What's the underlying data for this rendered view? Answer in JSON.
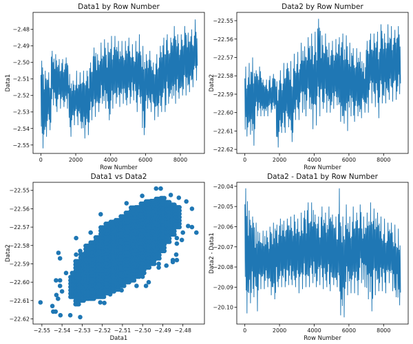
{
  "colors": {
    "series": "#1f77b4",
    "frame": "#000000",
    "background": "#ffffff"
  },
  "chart_data": [
    {
      "type": "line",
      "title": "Data1 by Row Number",
      "xlabel": "Row Number",
      "ylabel": "Data1",
      "xlim": [
        -448,
        9380
      ],
      "ylim": [
        -2.5551,
        -2.4697
      ],
      "xticks": [
        {
          "v": 0,
          "label": "0"
        },
        {
          "v": 2000,
          "label": "2000"
        },
        {
          "v": 4000,
          "label": "4000"
        },
        {
          "v": 6000,
          "label": "6000"
        },
        {
          "v": 8000,
          "label": "8000"
        }
      ],
      "yticks": [
        {
          "v": -2.48,
          "label": "−2.48"
        },
        {
          "v": -2.49,
          "label": "−2.49"
        },
        {
          "v": -2.5,
          "label": "−2.50"
        },
        {
          "v": -2.51,
          "label": "−2.51"
        },
        {
          "v": -2.52,
          "label": "−2.52"
        },
        {
          "v": -2.53,
          "label": "−2.53"
        },
        {
          "v": -2.54,
          "label": "−2.54"
        },
        {
          "v": -2.55,
          "label": "−2.55"
        }
      ],
      "bin_rows": 200,
      "bins_min_max": [
        [
          -2.552,
          -2.499
        ],
        [
          -2.545,
          -2.505
        ],
        [
          -2.541,
          -2.506
        ],
        [
          -2.526,
          -2.493
        ],
        [
          -2.53,
          -2.495
        ],
        [
          -2.528,
          -2.498
        ],
        [
          -2.527,
          -2.498
        ],
        [
          -2.528,
          -2.497
        ],
        [
          -2.545,
          -2.507
        ],
        [
          -2.538,
          -2.511
        ],
        [
          -2.538,
          -2.505
        ],
        [
          -2.54,
          -2.506
        ],
        [
          -2.546,
          -2.505
        ],
        [
          -2.544,
          -2.505
        ],
        [
          -2.535,
          -2.5
        ],
        [
          -2.533,
          -2.491
        ],
        [
          -2.53,
          -2.495
        ],
        [
          -2.525,
          -2.488
        ],
        [
          -2.528,
          -2.486
        ],
        [
          -2.535,
          -2.488
        ],
        [
          -2.528,
          -2.484
        ],
        [
          -2.525,
          -2.484
        ],
        [
          -2.527,
          -2.487
        ],
        [
          -2.525,
          -2.487
        ],
        [
          -2.526,
          -2.487
        ],
        [
          -2.525,
          -2.485
        ],
        [
          -2.523,
          -2.489
        ],
        [
          -2.53,
          -2.487
        ],
        [
          -2.525,
          -2.483
        ],
        [
          -2.544,
          -2.49
        ],
        [
          -2.528,
          -2.495
        ],
        [
          -2.53,
          -2.493
        ],
        [
          -2.535,
          -2.5
        ],
        [
          -2.533,
          -2.495
        ],
        [
          -2.53,
          -2.49
        ],
        [
          -2.53,
          -2.485
        ],
        [
          -2.525,
          -2.483
        ],
        [
          -2.522,
          -2.485
        ],
        [
          -2.525,
          -2.478
        ],
        [
          -2.522,
          -2.483
        ],
        [
          -2.52,
          -2.483
        ],
        [
          -2.52,
          -2.478
        ],
        [
          -2.518,
          -2.482
        ],
        [
          -2.515,
          -2.48
        ],
        [
          -2.511,
          -2.474
        ]
      ]
    },
    {
      "type": "line",
      "title": "Data2 by Row Number",
      "xlabel": "Row Number",
      "ylabel": "Data2",
      "xlim": [
        -464,
        9417
      ],
      "ylim": [
        -22.6222,
        -22.5455
      ],
      "xticks": [
        {
          "v": 0,
          "label": "0"
        },
        {
          "v": 2000,
          "label": "2000"
        },
        {
          "v": 4000,
          "label": "4000"
        },
        {
          "v": 6000,
          "label": "6000"
        },
        {
          "v": 8000,
          "label": "8000"
        }
      ],
      "yticks": [
        {
          "v": -22.55,
          "label": "−22.55"
        },
        {
          "v": -22.56,
          "label": "−22.56"
        },
        {
          "v": -22.57,
          "label": "−22.57"
        },
        {
          "v": -22.58,
          "label": "−22.58"
        },
        {
          "v": -22.59,
          "label": "−22.59"
        },
        {
          "v": -22.6,
          "label": "−22.60"
        },
        {
          "v": -22.61,
          "label": "−22.61"
        },
        {
          "v": -22.62,
          "label": "−22.62"
        }
      ],
      "bin_rows": 200,
      "bins_min_max": [
        [
          -22.613,
          -22.575
        ],
        [
          -22.612,
          -22.573
        ],
        [
          -22.618,
          -22.57
        ],
        [
          -22.602,
          -22.577
        ],
        [
          -22.602,
          -22.575
        ],
        [
          -22.602,
          -22.582
        ],
        [
          -22.602,
          -22.582
        ],
        [
          -22.6,
          -22.58
        ],
        [
          -22.598,
          -22.579
        ],
        [
          -22.619,
          -22.583
        ],
        [
          -22.611,
          -22.577
        ],
        [
          -22.611,
          -22.573
        ],
        [
          -22.608,
          -22.573
        ],
        [
          -22.616,
          -22.572
        ],
        [
          -22.604,
          -22.568
        ],
        [
          -22.604,
          -22.567
        ],
        [
          -22.6,
          -22.562
        ],
        [
          -22.602,
          -22.564
        ],
        [
          -22.598,
          -22.559
        ],
        [
          -22.609,
          -22.557
        ],
        [
          -22.607,
          -22.556
        ],
        [
          -22.602,
          -22.549
        ],
        [
          -22.598,
          -22.558
        ],
        [
          -22.6,
          -22.557
        ],
        [
          -22.6,
          -22.562
        ],
        [
          -22.598,
          -22.561
        ],
        [
          -22.596,
          -22.56
        ],
        [
          -22.605,
          -22.559
        ],
        [
          -22.606,
          -22.557
        ],
        [
          -22.61,
          -22.558
        ],
        [
          -22.602,
          -22.562
        ],
        [
          -22.605,
          -22.565
        ],
        [
          -22.602,
          -22.565
        ],
        [
          -22.603,
          -22.567
        ],
        [
          -22.6,
          -22.573
        ],
        [
          -22.6,
          -22.561
        ],
        [
          -22.595,
          -22.557
        ],
        [
          -22.597,
          -22.557
        ],
        [
          -22.603,
          -22.556
        ],
        [
          -22.595,
          -22.552
        ],
        [
          -22.595,
          -22.557
        ],
        [
          -22.593,
          -22.552
        ],
        [
          -22.594,
          -22.553
        ],
        [
          -22.593,
          -22.555
        ],
        [
          -22.59,
          -22.553
        ]
      ]
    },
    {
      "type": "scatter",
      "title": "Data1 vs Data2",
      "xlabel": "Data1",
      "ylabel": "Data2",
      "xlim": [
        -2.5544,
        -2.4693
      ],
      "ylim": [
        -22.6228,
        -22.5456
      ],
      "xticks": [
        {
          "v": -2.55,
          "label": "−2.55"
        },
        {
          "v": -2.54,
          "label": "−2.54"
        },
        {
          "v": -2.53,
          "label": "−2.53"
        },
        {
          "v": -2.52,
          "label": "−2.52"
        },
        {
          "v": -2.51,
          "label": "−2.51"
        },
        {
          "v": -2.5,
          "label": "−2.50"
        },
        {
          "v": -2.49,
          "label": "−2.49"
        },
        {
          "v": -2.48,
          "label": "−2.48"
        }
      ],
      "yticks": [
        {
          "v": -22.55,
          "label": "−22.55"
        },
        {
          "v": -22.56,
          "label": "−22.56"
        },
        {
          "v": -22.57,
          "label": "−22.57"
        },
        {
          "v": -22.58,
          "label": "−22.58"
        },
        {
          "v": -22.59,
          "label": "−22.59"
        },
        {
          "v": -22.6,
          "label": "−22.60"
        },
        {
          "v": -22.61,
          "label": "−22.61"
        },
        {
          "v": -22.62,
          "label": "−22.62"
        }
      ],
      "dense_columns": [
        [
          -2.535,
          -22.608,
          -22.596
        ],
        [
          -2.5325,
          -22.612,
          -22.588
        ],
        [
          -2.53,
          -22.61,
          -22.584
        ],
        [
          -2.5275,
          -22.609,
          -22.58
        ],
        [
          -2.525,
          -22.609,
          -22.577
        ],
        [
          -2.5225,
          -22.608,
          -22.574
        ],
        [
          -2.52,
          -22.608,
          -22.57
        ],
        [
          -2.5175,
          -22.606,
          -22.567
        ],
        [
          -2.515,
          -22.605,
          -22.566
        ],
        [
          -2.5125,
          -22.604,
          -22.565
        ],
        [
          -2.51,
          -22.602,
          -22.563
        ],
        [
          -2.5075,
          -22.6,
          -22.561
        ],
        [
          -2.505,
          -22.599,
          -22.559
        ],
        [
          -2.5025,
          -22.597,
          -22.558
        ],
        [
          -2.5,
          -22.595,
          -22.557
        ],
        [
          -2.4975,
          -22.592,
          -22.556
        ],
        [
          -2.495,
          -22.59,
          -22.555
        ],
        [
          -2.4925,
          -22.587,
          -22.553
        ],
        [
          -2.49,
          -22.583,
          -22.553
        ],
        [
          -2.4875,
          -22.578,
          -22.555
        ],
        [
          -2.485,
          -22.574,
          -22.557
        ],
        [
          -2.4825,
          -22.57,
          -22.559
        ]
      ],
      "points": [
        [
          -2.5507,
          -22.611
        ],
        [
          -2.5448,
          -22.613
        ],
        [
          -2.5444,
          -22.616
        ],
        [
          -2.5432,
          -22.616
        ],
        [
          -2.5408,
          -22.618
        ],
        [
          -2.5418,
          -22.584
        ],
        [
          -2.541,
          -22.587
        ],
        [
          -2.543,
          -22.599
        ],
        [
          -2.541,
          -22.599
        ],
        [
          -2.541,
          -22.602
        ],
        [
          -2.54,
          -22.605
        ],
        [
          -2.5428,
          -22.607
        ],
        [
          -2.542,
          -22.609
        ],
        [
          -2.538,
          -22.595
        ],
        [
          -2.535,
          -22.595
        ],
        [
          -2.5359,
          -22.618
        ],
        [
          -2.531,
          -22.619
        ],
        [
          -2.533,
          -22.576
        ],
        [
          -2.533,
          -22.585
        ],
        [
          -2.531,
          -22.583
        ],
        [
          -2.5258,
          -22.573
        ],
        [
          -2.5208,
          -22.563
        ],
        [
          -2.521,
          -22.611
        ],
        [
          -2.5104,
          -22.6044
        ],
        [
          -2.508,
          -22.557
        ],
        [
          -2.5002,
          -22.553
        ],
        [
          -2.4933,
          -22.549
        ],
        [
          -2.491,
          -22.549
        ],
        [
          -2.486,
          -22.5525
        ],
        [
          -2.482,
          -22.554
        ],
        [
          -2.4783,
          -22.556
        ],
        [
          -2.4755,
          -22.56
        ],
        [
          -2.4774,
          -22.5694
        ],
        [
          -2.4755,
          -22.57
        ],
        [
          -2.4733,
          -22.573
        ],
        [
          -2.48,
          -22.573
        ],
        [
          -2.4805,
          -22.577
        ],
        [
          -2.483,
          -22.576
        ],
        [
          -2.483,
          -22.579
        ],
        [
          -2.4833,
          -22.585
        ],
        [
          -2.483,
          -22.588
        ],
        [
          -2.485,
          -22.588
        ],
        [
          -2.485,
          -22.589
        ],
        [
          -2.4882,
          -22.591
        ],
        [
          -2.492,
          -22.592
        ],
        [
          -2.492,
          -22.59
        ],
        [
          -2.4983,
          -22.602
        ],
        [
          -2.497,
          -22.6
        ],
        [
          -2.503,
          -22.602
        ],
        [
          -2.5,
          -22.597
        ],
        [
          -2.5161,
          -22.6066
        ],
        [
          -2.519,
          -22.6113
        ]
      ]
    },
    {
      "type": "line",
      "title": "Data2 - Data1 by Row Number",
      "xlabel": "Row Number",
      "ylabel": "Data2 - Data1",
      "xlim": [
        -464,
        9417
      ],
      "ylim": [
        -20.1083,
        -20.038
      ],
      "xticks": [
        {
          "v": 0,
          "label": "0"
        },
        {
          "v": 2000,
          "label": "2000"
        },
        {
          "v": 4000,
          "label": "4000"
        },
        {
          "v": 6000,
          "label": "6000"
        },
        {
          "v": 8000,
          "label": "8000"
        }
      ],
      "yticks": [
        {
          "v": -20.04,
          "label": "−20.04"
        },
        {
          "v": -20.05,
          "label": "−20.05"
        },
        {
          "v": -20.06,
          "label": "−20.06"
        },
        {
          "v": -20.07,
          "label": "−20.07"
        },
        {
          "v": -20.08,
          "label": "−20.08"
        },
        {
          "v": -20.09,
          "label": "−20.09"
        },
        {
          "v": -20.1,
          "label": "−20.10"
        }
      ],
      "bin_rows": 200,
      "bins_min_max": [
        [
          -20.103,
          -20.041
        ],
        [
          -20.098,
          -20.052
        ],
        [
          -20.095,
          -20.055
        ],
        [
          -20.102,
          -20.058
        ],
        [
          -20.091,
          -20.063
        ],
        [
          -20.091,
          -20.062
        ],
        [
          -20.09,
          -20.062
        ],
        [
          -20.094,
          -20.06
        ],
        [
          -20.096,
          -20.058
        ],
        [
          -20.09,
          -20.059
        ],
        [
          -20.09,
          -20.056
        ],
        [
          -20.09,
          -20.057
        ],
        [
          -20.089,
          -20.056
        ],
        [
          -20.089,
          -20.055
        ],
        [
          -20.09,
          -20.054
        ],
        [
          -20.093,
          -20.056
        ],
        [
          -20.091,
          -20.053
        ],
        [
          -20.09,
          -20.052
        ],
        [
          -20.09,
          -20.048
        ],
        [
          -20.088,
          -20.048
        ],
        [
          -20.09,
          -20.054
        ],
        [
          -20.089,
          -20.055
        ],
        [
          -20.091,
          -20.05
        ],
        [
          -20.09,
          -20.053
        ],
        [
          -20.092,
          -20.05
        ],
        [
          -20.089,
          -20.054
        ],
        [
          -20.09,
          -20.055
        ],
        [
          -20.104,
          -20.041
        ],
        [
          -20.105,
          -20.055
        ],
        [
          -20.094,
          -20.049
        ],
        [
          -20.093,
          -20.055
        ],
        [
          -20.093,
          -20.05
        ],
        [
          -20.094,
          -20.053
        ],
        [
          -20.088,
          -20.049
        ],
        [
          -20.09,
          -20.055
        ],
        [
          -20.096,
          -20.053
        ],
        [
          -20.102,
          -20.048
        ],
        [
          -20.094,
          -20.051
        ],
        [
          -20.092,
          -20.053
        ],
        [
          -20.092,
          -20.055
        ],
        [
          -20.093,
          -20.056
        ],
        [
          -20.088,
          -20.058
        ],
        [
          -20.092,
          -20.058
        ],
        [
          -20.095,
          -20.059
        ],
        [
          -20.099,
          -20.061
        ]
      ]
    }
  ]
}
